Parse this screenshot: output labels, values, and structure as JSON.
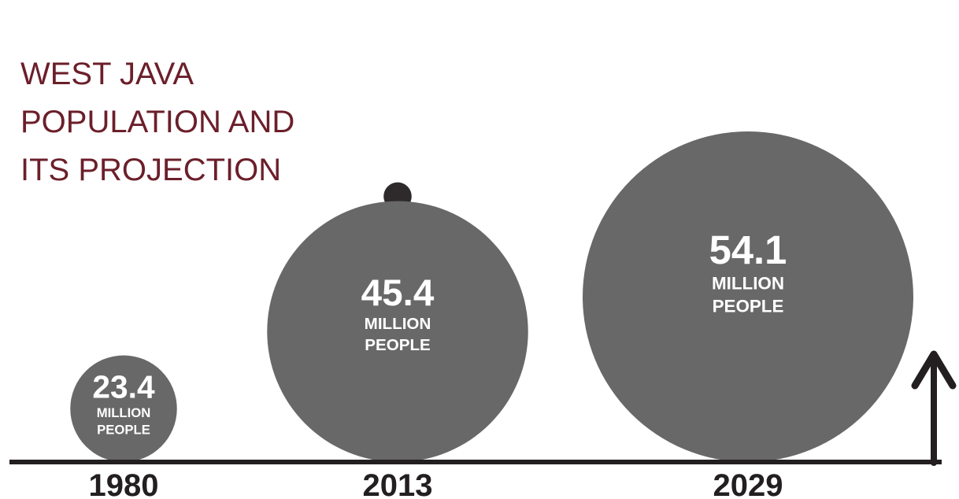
{
  "title": {
    "line1": "WEST JAVA",
    "line2": "POPULATION AND",
    "line3": "ITS PROJECTION"
  },
  "chart_data": {
    "type": "bubble",
    "title": "WEST JAVA POPULATION AND ITS PROJECTION",
    "categories": [
      "1980",
      "2013",
      "2029"
    ],
    "values": [
      23.4,
      45.4,
      54.1
    ],
    "value_labels": [
      "23.4",
      "45.4",
      "54.1"
    ],
    "unit_line1": "MILLION",
    "unit_line2": "PEOPLE",
    "icons": [
      "",
      "person-icon",
      "crowd-icon"
    ],
    "colors": {
      "bubble": "#696869",
      "figure": "#2e2a2b",
      "axis": "#231f20",
      "title": "#6b1f2a",
      "text": "#ffffff"
    }
  }
}
